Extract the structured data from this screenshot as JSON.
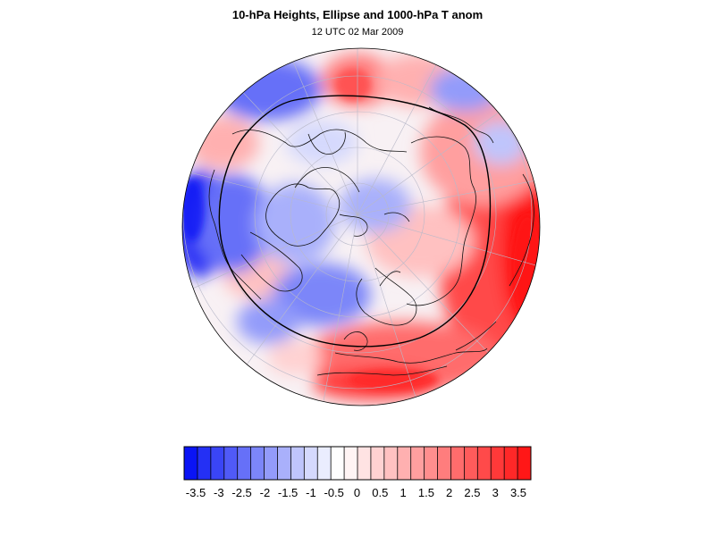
{
  "title": "10-hPa Heights, Ellipse and 1000-hPa T anom",
  "subtitle": "12 UTC 02 Mar 2009",
  "colorbar": {
    "labels": [
      "-3.5",
      "-3",
      "-2.5",
      "-2",
      "-1.5",
      "-1",
      "-0.5",
      "0",
      "0.5",
      "1",
      "1.5",
      "2",
      "2.5",
      "3",
      "3.5"
    ],
    "colors": [
      "#0a14f5",
      "#2430f5",
      "#3a45f6",
      "#505af7",
      "#6670f8",
      "#7c86f9",
      "#939bfa",
      "#a9b0fb",
      "#bfc5fc",
      "#d5d9fd",
      "#eaedfe",
      "#fefefe",
      "#fff4f4",
      "#ffe3e3",
      "#ffd2d2",
      "#ffc1c1",
      "#ffb0b0",
      "#ff9f9f",
      "#ff8e8e",
      "#ff7d7d",
      "#ff6c6c",
      "#ff5b5b",
      "#ff4a4a",
      "#ff3939",
      "#ff2828",
      "#ff1717"
    ]
  },
  "colors": {
    "cold": "#1f2cf2",
    "warm": "#ff1a1a",
    "neutral": "#f7f5ff"
  }
}
